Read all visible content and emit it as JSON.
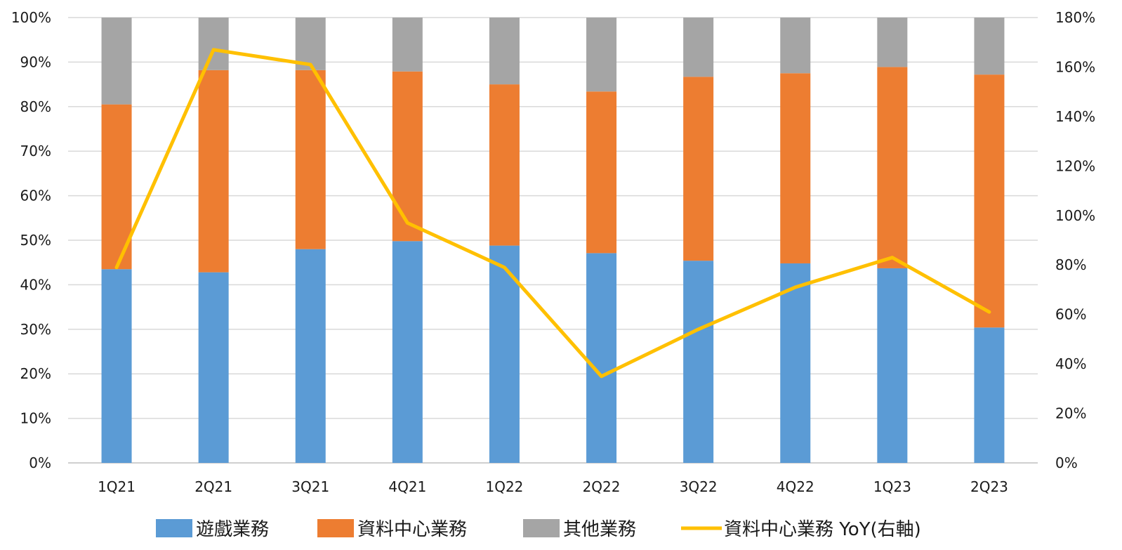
{
  "chart_data": {
    "type": "bar",
    "stacked": true,
    "categories": [
      "1Q21",
      "2Q21",
      "3Q21",
      "4Q21",
      "1Q22",
      "2Q22",
      "3Q22",
      "4Q22",
      "1Q23",
      "2Q23"
    ],
    "series": [
      {
        "name": "遊戲業務",
        "type": "bar",
        "axis": "left",
        "color": "#5b9bd5",
        "values": [
          43.5,
          42.8,
          48.0,
          49.8,
          48.8,
          47.1,
          45.4,
          44.8,
          43.7,
          30.4
        ]
      },
      {
        "name": "資料中心業務",
        "type": "bar",
        "axis": "left",
        "color": "#ed7d31",
        "values": [
          37.0,
          45.4,
          40.2,
          38.1,
          36.2,
          36.3,
          41.3,
          42.7,
          45.2,
          56.8
        ]
      },
      {
        "name": "其他業務",
        "type": "bar",
        "axis": "left",
        "color": "#a5a5a5",
        "values": [
          19.5,
          11.8,
          11.8,
          12.1,
          15.0,
          16.6,
          13.3,
          12.5,
          11.1,
          12.8
        ]
      },
      {
        "name": "資料中心業務 YoY(右軸)",
        "type": "line",
        "axis": "right",
        "color": "#ffc000",
        "values": [
          79,
          167,
          161,
          97,
          79,
          35,
          54,
          71,
          83,
          61
        ]
      }
    ],
    "y_left": {
      "ylim": [
        0,
        100
      ],
      "ticks": [
        0,
        10,
        20,
        30,
        40,
        50,
        60,
        70,
        80,
        90,
        100
      ],
      "tick_labels": [
        "0%",
        "10%",
        "20%",
        "30%",
        "40%",
        "50%",
        "60%",
        "70%",
        "80%",
        "90%",
        "100%"
      ]
    },
    "y_right": {
      "ylim": [
        0,
        180
      ],
      "ticks": [
        0,
        20,
        40,
        60,
        80,
        100,
        120,
        140,
        160,
        180
      ],
      "tick_labels": [
        "0%",
        "20%",
        "40%",
        "60%",
        "80%",
        "100%",
        "120%",
        "140%",
        "160%",
        "180%"
      ]
    },
    "title": "",
    "xlabel": "",
    "ylabel": "",
    "grid": true,
    "legend_position": "bottom"
  }
}
